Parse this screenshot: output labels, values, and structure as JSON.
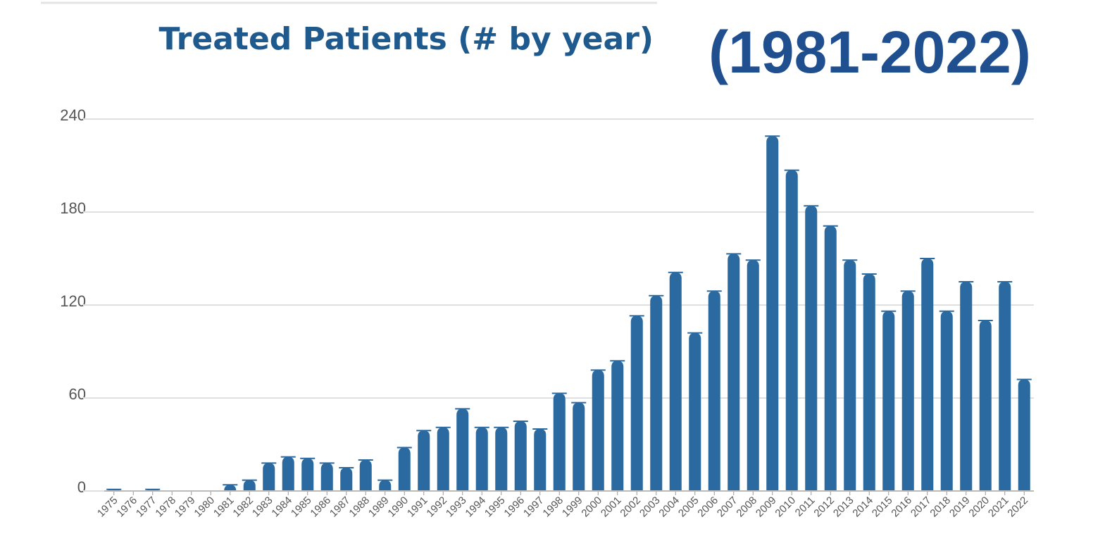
{
  "chart_data": {
    "type": "bar",
    "title": "Treated Patients (# by year)",
    "subtitle": "(1981-2022)",
    "categories": [
      "1975",
      "1976",
      "1977",
      "1978",
      "1979",
      "1980",
      "1981",
      "1982",
      "1983",
      "1984",
      "1985",
      "1986",
      "1987",
      "1988",
      "1989",
      "1990",
      "1991",
      "1992",
      "1993",
      "1994",
      "1995",
      "1996",
      "1997",
      "1998",
      "1999",
      "2000",
      "2001",
      "2002",
      "2003",
      "2004",
      "2005",
      "2006",
      "2007",
      "2008",
      "2009",
      "2010",
      "2011",
      "2012",
      "2013",
      "2014",
      "2015",
      "2016",
      "2017",
      "2018",
      "2019",
      "2020",
      "2021",
      "2022"
    ],
    "values": [
      1,
      0,
      1,
      0,
      0,
      0,
      4,
      7,
      18,
      22,
      21,
      18,
      15,
      20,
      7,
      28,
      39,
      41,
      53,
      41,
      41,
      45,
      40,
      63,
      57,
      78,
      84,
      113,
      126,
      141,
      102,
      129,
      153,
      149,
      229,
      207,
      184,
      171,
      149,
      140,
      116,
      129,
      150,
      116,
      135,
      110,
      135,
      72
    ],
    "color": "#2a6aa0",
    "ylim": [
      0,
      240
    ],
    "yticks": [
      0,
      60,
      120,
      180,
      240
    ],
    "grid": true
  }
}
